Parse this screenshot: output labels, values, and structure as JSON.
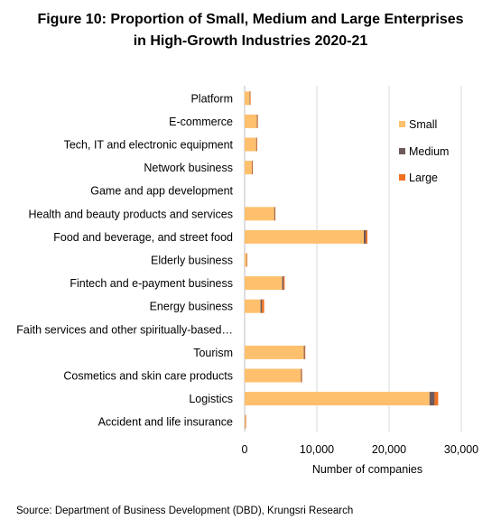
{
  "title_line1": "Figure 10: Proportion of Small, Medium and Large Enterprises",
  "title_line2": "in High-Growth Industries 2020-21",
  "source": "Source: Department of Business Development (DBD), Krungsri Research",
  "colors": {
    "Small": "#FFC06E",
    "Medium": "#6E5A5A",
    "Large": "#F07020",
    "grid": "#D9D9D9",
    "text": "#000000"
  },
  "chart_data": {
    "type": "bar",
    "orientation": "horizontal",
    "stacked": true,
    "categories": [
      "Platform",
      "E-commerce",
      "Tech, IT and electronic equipment",
      "Network business",
      "Game and app development",
      "Health and beauty products and services",
      "Food and beverage, and street food",
      "Elderly business",
      "Fintech and e-payment business",
      "Energy business",
      "Faith services and other spiritually-based…",
      "Tourism",
      "Cosmetics and skin care products",
      "Logistics",
      "Accident and life insurance"
    ],
    "series": [
      {
        "name": "Small",
        "values": [
          700,
          1700,
          1600,
          1000,
          0,
          4100,
          16500,
          250,
          5200,
          2200,
          0,
          8200,
          7800,
          25600,
          100
        ]
      },
      {
        "name": "Medium",
        "values": [
          50,
          80,
          70,
          50,
          0,
          90,
          300,
          20,
          200,
          200,
          0,
          120,
          100,
          700,
          20
        ]
      },
      {
        "name": "Large",
        "values": [
          30,
          50,
          40,
          30,
          0,
          60,
          200,
          10,
          150,
          300,
          0,
          80,
          70,
          500,
          10
        ]
      }
    ],
    "xlabel": "Number of companies",
    "xlim": [
      0,
      30000
    ],
    "xticks": [
      0,
      10000,
      20000,
      30000
    ],
    "xtick_labels": [
      "0",
      "10,000",
      "20,000",
      "30,000"
    ],
    "grid": true,
    "legend": "right"
  }
}
